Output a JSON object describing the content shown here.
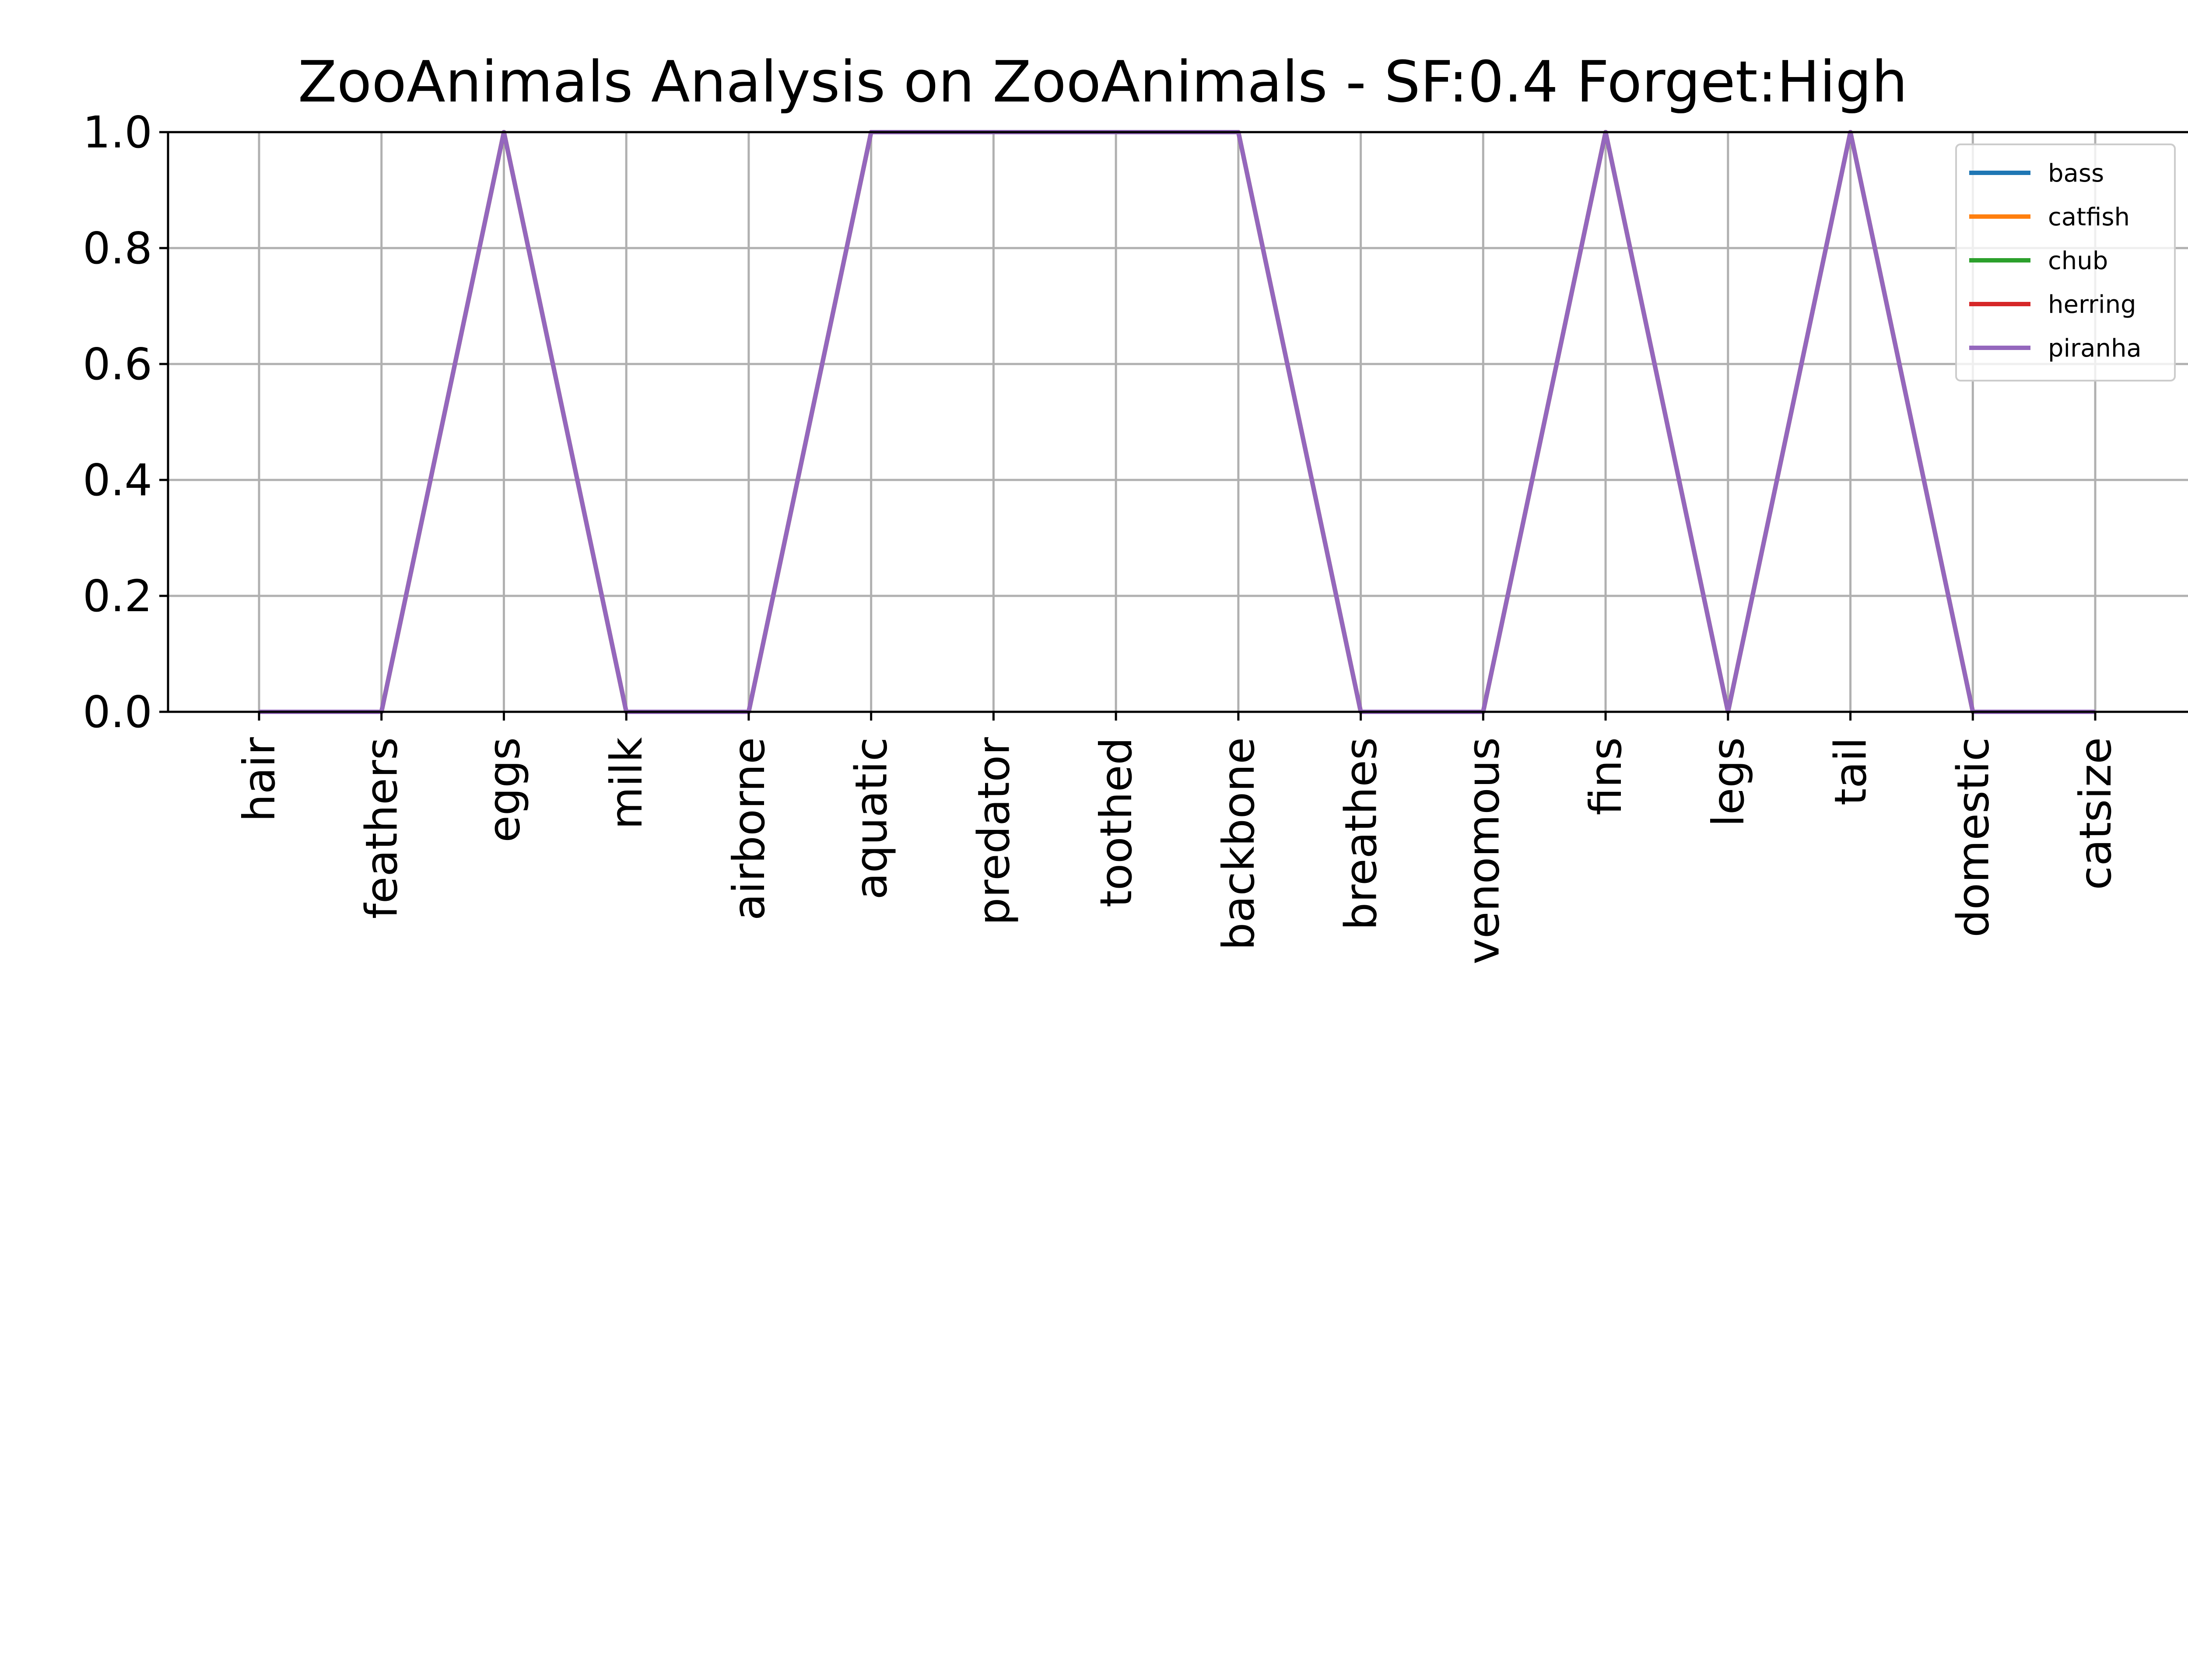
{
  "chart_data": {
    "type": "line",
    "title": "ZooAnimals Analysis on ZooAnimals - SF:0.4 Forget:High",
    "xlabel": "",
    "ylabel": "",
    "ylim": [
      0,
      1
    ],
    "yticks": [
      "0.0",
      "0.2",
      "0.4",
      "0.6",
      "0.8",
      "1.0"
    ],
    "grid": true,
    "legend_position": "top-right",
    "categories": [
      "hair",
      "feathers",
      "eggs",
      "milk",
      "airborne",
      "aquatic",
      "predator",
      "toothed",
      "backbone",
      "breathes",
      "venomous",
      "fins",
      "legs",
      "tail",
      "domestic",
      "catsize"
    ],
    "series": [
      {
        "name": "bass",
        "color": "#1f77b4",
        "values": [
          0,
          0,
          1,
          0,
          0,
          1,
          1,
          1,
          1,
          0,
          0,
          1,
          0,
          1,
          0,
          0
        ]
      },
      {
        "name": "catfish",
        "color": "#ff7f0e",
        "values": [
          0,
          0,
          1,
          0,
          0,
          1,
          1,
          1,
          1,
          0,
          0,
          1,
          0,
          1,
          0,
          0
        ]
      },
      {
        "name": "chub",
        "color": "#2ca02c",
        "values": [
          0,
          0,
          1,
          0,
          0,
          1,
          1,
          1,
          1,
          0,
          0,
          1,
          0,
          1,
          0,
          0
        ]
      },
      {
        "name": "herring",
        "color": "#d62728",
        "values": [
          0,
          0,
          1,
          0,
          0,
          1,
          1,
          1,
          1,
          0,
          0,
          1,
          0,
          1,
          0,
          0
        ]
      },
      {
        "name": "piranha",
        "color": "#9467bd",
        "values": [
          0,
          0,
          1,
          0,
          0,
          1,
          1,
          1,
          1,
          0,
          0,
          1,
          0,
          1,
          0,
          0
        ]
      }
    ]
  }
}
